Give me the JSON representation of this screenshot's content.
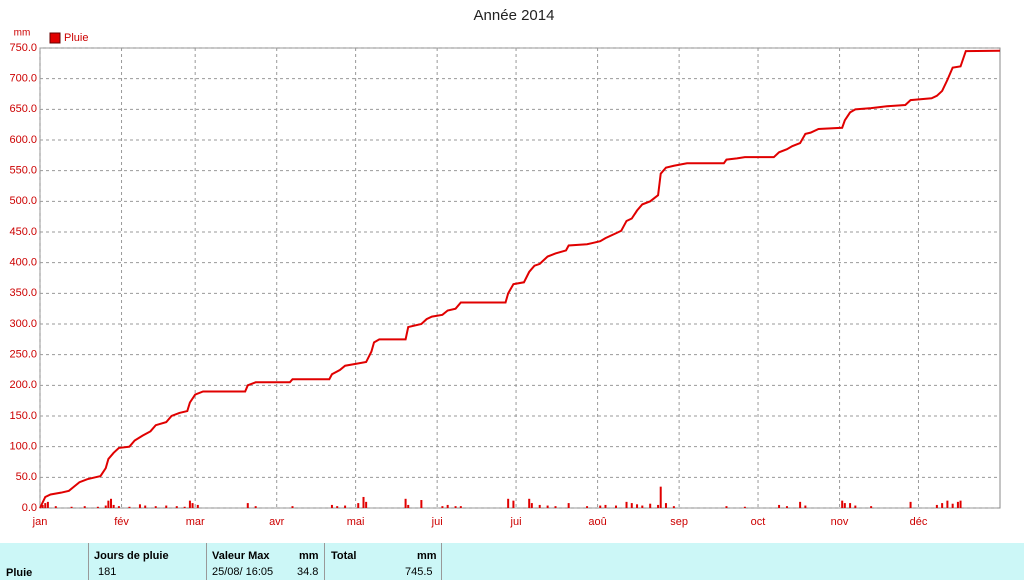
{
  "chart_data": {
    "type": "line",
    "title": "Année 2014",
    "y_label": "mm",
    "legend": "top-left",
    "grid": true,
    "xlim": [
      0,
      365
    ],
    "xticks": [
      {
        "value": 0,
        "label": "jan"
      },
      {
        "value": 31,
        "label": "fév"
      },
      {
        "value": 59,
        "label": "mar"
      },
      {
        "value": 90,
        "label": "avr"
      },
      {
        "value": 120,
        "label": "mai"
      },
      {
        "value": 151,
        "label": "jui"
      },
      {
        "value": 181,
        "label": "jui"
      },
      {
        "value": 212,
        "label": "aoû"
      },
      {
        "value": 243,
        "label": "sep"
      },
      {
        "value": 273,
        "label": "oct"
      },
      {
        "value": 304,
        "label": "nov"
      },
      {
        "value": 334,
        "label": "déc"
      }
    ],
    "ylim": [
      0,
      750
    ],
    "yticks": [
      {
        "value": 0,
        "label": "0.0"
      },
      {
        "value": 50,
        "label": "50.0"
      },
      {
        "value": 100,
        "label": "100.0"
      },
      {
        "value": 150,
        "label": "150.0"
      },
      {
        "value": 200,
        "label": "200.0"
      },
      {
        "value": 250,
        "label": "250.0"
      },
      {
        "value": 300,
        "label": "300.0"
      },
      {
        "value": 350,
        "label": "350.0"
      },
      {
        "value": 400,
        "label": "400.0"
      },
      {
        "value": 450,
        "label": "450.0"
      },
      {
        "value": 500,
        "label": "500.0"
      },
      {
        "value": 550,
        "label": "550.0"
      },
      {
        "value": 600,
        "label": "600.0"
      },
      {
        "value": 650,
        "label": "650.0"
      },
      {
        "value": 700,
        "label": "700.0"
      },
      {
        "value": 750,
        "label": "750.0"
      }
    ],
    "series": [
      {
        "name": "Pluie",
        "color": "#e00000",
        "x": [
          1,
          2,
          3,
          6,
          12,
          17,
          22,
          25,
          26,
          27,
          28,
          30,
          34,
          38,
          40,
          44,
          48,
          52,
          55,
          57,
          58,
          60,
          79,
          82,
          96,
          111,
          113,
          116,
          121,
          123,
          124,
          139,
          140,
          145,
          153,
          155,
          158,
          160,
          178,
          180,
          186,
          187,
          190,
          193,
          196,
          201,
          208,
          213,
          215,
          219,
          223,
          225,
          227,
          229,
          232,
          235,
          236,
          238,
          241,
          261,
          268,
          281,
          284,
          289,
          291,
          305,
          306,
          308,
          310,
          316,
          331,
          341,
          343,
          345,
          347,
          349,
          350
        ],
        "values": [
          5,
          8,
          10,
          3,
          2,
          3,
          2,
          4,
          12,
          15,
          5,
          3,
          2,
          6,
          4,
          3,
          4,
          3,
          2,
          12,
          8,
          5,
          8,
          3,
          3,
          5,
          3,
          4,
          8,
          18,
          10,
          15,
          5,
          13,
          3,
          5,
          3,
          3,
          15,
          12,
          15,
          8,
          5,
          4,
          3,
          8,
          3,
          4,
          5,
          4,
          10,
          8,
          6,
          4,
          7,
          5,
          34.8,
          8,
          3,
          3,
          2,
          5,
          3,
          10,
          4,
          12,
          8,
          8,
          4,
          3,
          10,
          5,
          8,
          12,
          7,
          10,
          12
        ]
      },
      {
        "color": "#e00000",
        "x": [
          0,
          2,
          4,
          8,
          11,
          13,
          15,
          18,
          21,
          23,
          25,
          26,
          28,
          30,
          34,
          36,
          39,
          42,
          44,
          48,
          50,
          53,
          56,
          57,
          59,
          62,
          78,
          79,
          82,
          95,
          96,
          110,
          111,
          114,
          116,
          120,
          124,
          126,
          127,
          129,
          139,
          140,
          145,
          147,
          149,
          153,
          155,
          158,
          160,
          177,
          178,
          180,
          184,
          186,
          188,
          190,
          193,
          196,
          200,
          201,
          208,
          210,
          213,
          215,
          219,
          221,
          223,
          225,
          227,
          229,
          232,
          235,
          236,
          238,
          241,
          246,
          260,
          261,
          265,
          268,
          279,
          281,
          284,
          286,
          289,
          291,
          293,
          296,
          305,
          306,
          308,
          310,
          316,
          322,
          329,
          331,
          339,
          341,
          343,
          345,
          347,
          350,
          352,
          365
        ],
        "values": [
          0,
          18,
          22,
          25,
          28,
          35,
          42,
          47,
          50,
          52,
          65,
          80,
          90,
          98,
          100,
          110,
          118,
          125,
          135,
          140,
          150,
          155,
          158,
          172,
          185,
          190,
          190,
          200,
          205,
          205,
          210,
          210,
          218,
          225,
          232,
          235,
          238,
          255,
          270,
          275,
          275,
          295,
          300,
          308,
          312,
          315,
          322,
          325,
          335,
          335,
          350,
          365,
          368,
          385,
          395,
          398,
          410,
          415,
          420,
          428,
          430,
          432,
          435,
          440,
          448,
          452,
          468,
          472,
          485,
          495,
          500,
          510,
          545,
          555,
          558,
          562,
          562,
          568,
          570,
          572,
          572,
          580,
          585,
          590,
          595,
          610,
          612,
          618,
          620,
          632,
          645,
          650,
          652,
          655,
          657,
          665,
          668,
          672,
          680,
          698,
          718,
          720,
          745,
          745.5
        ]
      }
    ]
  },
  "table": {
    "header": [
      "Jours de pluie",
      "Valeur Max",
      "mm",
      "Total",
      "mm"
    ],
    "rows": [
      [
        "Pluie",
        "181",
        "25/08/ 16:05",
        "34.8",
        "745.5"
      ]
    ]
  }
}
